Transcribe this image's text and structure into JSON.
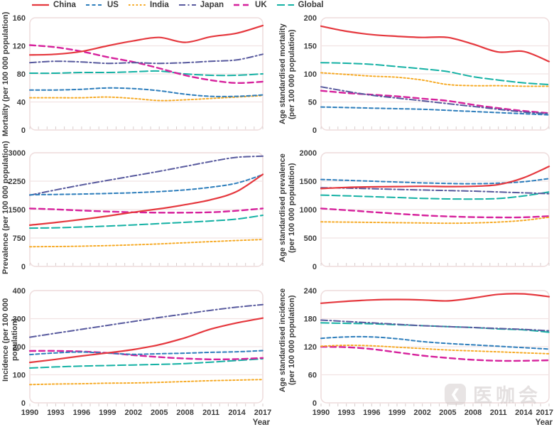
{
  "legend": {
    "items": [
      {
        "label": "China",
        "color": "#e5383e",
        "dash": "",
        "width": 2.2
      },
      {
        "label": "US",
        "color": "#2e7ebc",
        "dash": "5 3.5",
        "width": 2
      },
      {
        "label": "India",
        "color": "#f6a820",
        "dash": "2.5 2.8",
        "width": 1.9
      },
      {
        "label": "Japan",
        "color": "#585a9e",
        "dash": "9 3.5 2 3.5",
        "width": 2
      },
      {
        "label": "UK",
        "color": "#d6219c",
        "dash": "8 5",
        "width": 2.4
      },
      {
        "label": "Global",
        "color": "#14b1a4",
        "dash": "11 4.5",
        "width": 2
      }
    ]
  },
  "watermark": {
    "text": "医咖会",
    "icon": "chevron-logo"
  },
  "colors": {
    "panel_border": "#eedcdc",
    "gridline": "#f1e3e3",
    "tick_mark": "#d9cdcd",
    "text": "#3d3d3d"
  },
  "chart_data": {
    "type": "line",
    "xlabel": "Year",
    "years": [
      1990,
      1993,
      1996,
      1999,
      2002,
      2005,
      2008,
      2011,
      2014,
      2017
    ],
    "xtick_labels": [
      "1990",
      "1993",
      "1996",
      "1999",
      "2002",
      "2005",
      "2008",
      "2011",
      "2014",
      "2017"
    ],
    "legend_position": "top",
    "grid": true,
    "panels": [
      {
        "ylabel": "Mortality (per 100 000 population)",
        "ylabel2": "",
        "ylim": [
          0,
          160
        ],
        "yticks": [
          0,
          40,
          80,
          120,
          160
        ],
        "row": 0,
        "col": 0,
        "series": [
          {
            "name": "China",
            "values": [
              107,
              108,
              112,
              120,
              127,
              132,
              125,
              133,
              138,
              149
            ]
          },
          {
            "name": "US",
            "values": [
              57,
              57,
              58,
              60,
              59,
              56,
              51,
              48,
              48,
              50
            ]
          },
          {
            "name": "India",
            "values": [
              46,
              46,
              46,
              47,
              45,
              42,
              43,
              45,
              47,
              49
            ]
          },
          {
            "name": "Japan",
            "values": [
              96,
              98,
              97,
              95,
              96,
              95,
              96,
              98,
              100,
              108
            ]
          },
          {
            "name": "UK",
            "values": [
              121,
              118,
              112,
              104,
              97,
              88,
              78,
              71,
              67,
              69
            ]
          },
          {
            "name": "Global",
            "values": [
              81,
              81,
              82,
              82,
              83,
              84,
              80,
              78,
              78,
              80
            ]
          }
        ]
      },
      {
        "ylabel": "Age standardised mortality",
        "ylabel2": "(per 100 000 population)",
        "ylim": [
          0,
          200
        ],
        "yticks": [
          0,
          50,
          100,
          150,
          200
        ],
        "row": 0,
        "col": 1,
        "series": [
          {
            "name": "China",
            "values": [
              185,
              176,
              170,
              167,
              165,
              165,
              153,
              139,
              140,
              122
            ]
          },
          {
            "name": "US",
            "values": [
              41,
              40,
              39,
              38,
              37,
              35,
              33,
              31,
              29,
              27
            ]
          },
          {
            "name": "India",
            "values": [
              102,
              99,
              96,
              94,
              89,
              81,
              79,
              79,
              78,
              78
            ]
          },
          {
            "name": "Japan",
            "values": [
              77,
              69,
              62,
              57,
              52,
              47,
              42,
              37,
              32,
              29
            ]
          },
          {
            "name": "UK",
            "values": [
              70,
              66,
              63,
              60,
              56,
              52,
              45,
              39,
              34,
              30
            ]
          },
          {
            "name": "Global",
            "values": [
              120,
              119,
              117,
              113,
              109,
              104,
              95,
              89,
              84,
              81
            ]
          }
        ]
      },
      {
        "ylabel": "Prevalence (per 100 000 population)",
        "ylabel2": "",
        "ylim": [
          0,
          3000
        ],
        "yticks": [
          0,
          750,
          1500,
          2250,
          3000
        ],
        "row": 1,
        "col": 0,
        "series": [
          {
            "name": "China",
            "values": [
              1090,
              1160,
              1240,
              1330,
              1430,
              1520,
              1630,
              1760,
              1980,
              2430
            ]
          },
          {
            "name": "US",
            "values": [
              1890,
              1900,
              1910,
              1925,
              1945,
              1975,
              2020,
              2090,
              2200,
              2420
            ]
          },
          {
            "name": "India",
            "values": [
              520,
              525,
              535,
              550,
              570,
              595,
              625,
              655,
              685,
              710
            ]
          },
          {
            "name": "Japan",
            "values": [
              1880,
              2020,
              2150,
              2270,
              2390,
              2510,
              2640,
              2770,
              2880,
              2910
            ]
          },
          {
            "name": "UK",
            "values": [
              1530,
              1505,
              1475,
              1450,
              1430,
              1420,
              1420,
              1430,
              1470,
              1530
            ]
          },
          {
            "name": "Global",
            "values": [
              1010,
              1020,
              1040,
              1065,
              1095,
              1130,
              1165,
              1200,
              1250,
              1350
            ]
          }
        ]
      },
      {
        "ylabel": "Age standardised prevalence",
        "ylabel2": "(per 100 000 population)",
        "ylim": [
          0,
          2000
        ],
        "yticks": [
          0,
          500,
          1000,
          1500,
          2000
        ],
        "row": 1,
        "col": 1,
        "series": [
          {
            "name": "China",
            "values": [
              1370,
              1390,
              1400,
              1405,
              1410,
              1405,
              1410,
              1440,
              1560,
              1760
            ]
          },
          {
            "name": "US",
            "values": [
              1530,
              1515,
              1500,
              1485,
              1470,
              1460,
              1455,
              1465,
              1490,
              1545
            ]
          },
          {
            "name": "India",
            "values": [
              785,
              780,
              775,
              770,
              765,
              760,
              765,
              780,
              810,
              865
            ]
          },
          {
            "name": "Japan",
            "values": [
              1385,
              1378,
              1368,
              1355,
              1345,
              1335,
              1325,
              1310,
              1295,
              1280
            ]
          },
          {
            "name": "UK",
            "values": [
              1020,
              990,
              958,
              928,
              900,
              880,
              868,
              862,
              865,
              885
            ]
          },
          {
            "name": "Global",
            "values": [
              1255,
              1242,
              1228,
              1212,
              1198,
              1188,
              1185,
              1195,
              1240,
              1310
            ]
          }
        ]
      },
      {
        "ylabel": "Incidence (per 100 000 population)",
        "ylabel2": "",
        "ylim": [
          0,
          400
        ],
        "yticks": [
          0,
          100,
          200,
          300,
          400
        ],
        "row": 2,
        "col": 0,
        "series": [
          {
            "name": "China",
            "values": [
              144,
              155,
              167,
              178,
              190,
              207,
              232,
              263,
              285,
              302
            ]
          },
          {
            "name": "US",
            "values": [
              172,
              178,
              181,
              177,
              173,
              175,
              177,
              180,
              182,
              186
            ]
          },
          {
            "name": "India",
            "values": [
              65,
              67,
              68,
              70,
              71,
              73,
              76,
              79,
              81,
              83
            ]
          },
          {
            "name": "Japan",
            "values": [
              234,
              248,
              262,
              276,
              290,
              304,
              317,
              330,
              341,
              350
            ]
          },
          {
            "name": "UK",
            "values": [
              185,
              185,
              183,
              178,
              170,
              163,
              158,
              155,
              156,
              160
            ]
          },
          {
            "name": "Global",
            "values": [
              124,
              128,
              131,
              133,
              135,
              137,
              140,
              145,
              151,
              157
            ]
          }
        ]
      },
      {
        "ylabel": "Age standardised incidence",
        "ylabel2": "(per 100 000 population)",
        "ylim": [
          0,
          240
        ],
        "yticks": [
          0,
          60,
          120,
          180,
          240
        ],
        "row": 2,
        "col": 1,
        "series": [
          {
            "name": "China",
            "values": [
              213,
              217,
              220,
              221,
              220,
              218,
              224,
              232,
              233,
              227
            ]
          },
          {
            "name": "US",
            "values": [
              138,
              141,
              141,
              137,
              131,
              127,
              124,
              121,
              118,
              115
            ]
          },
          {
            "name": "India",
            "values": [
              121,
              123,
              122,
              119,
              116,
              113,
              111,
              109,
              107,
              105
            ]
          },
          {
            "name": "Japan",
            "values": [
              177,
              174,
              171,
              168,
              165,
              163,
              161,
              159,
              157,
              154
            ]
          },
          {
            "name": "UK",
            "values": [
              120,
              119,
              115,
              108,
              101,
              96,
              92,
              90,
              90,
              91
            ]
          },
          {
            "name": "Global",
            "values": [
              171,
              170,
              169,
              167,
              165,
              163,
              161,
              158,
              156,
              151
            ]
          }
        ]
      }
    ]
  }
}
